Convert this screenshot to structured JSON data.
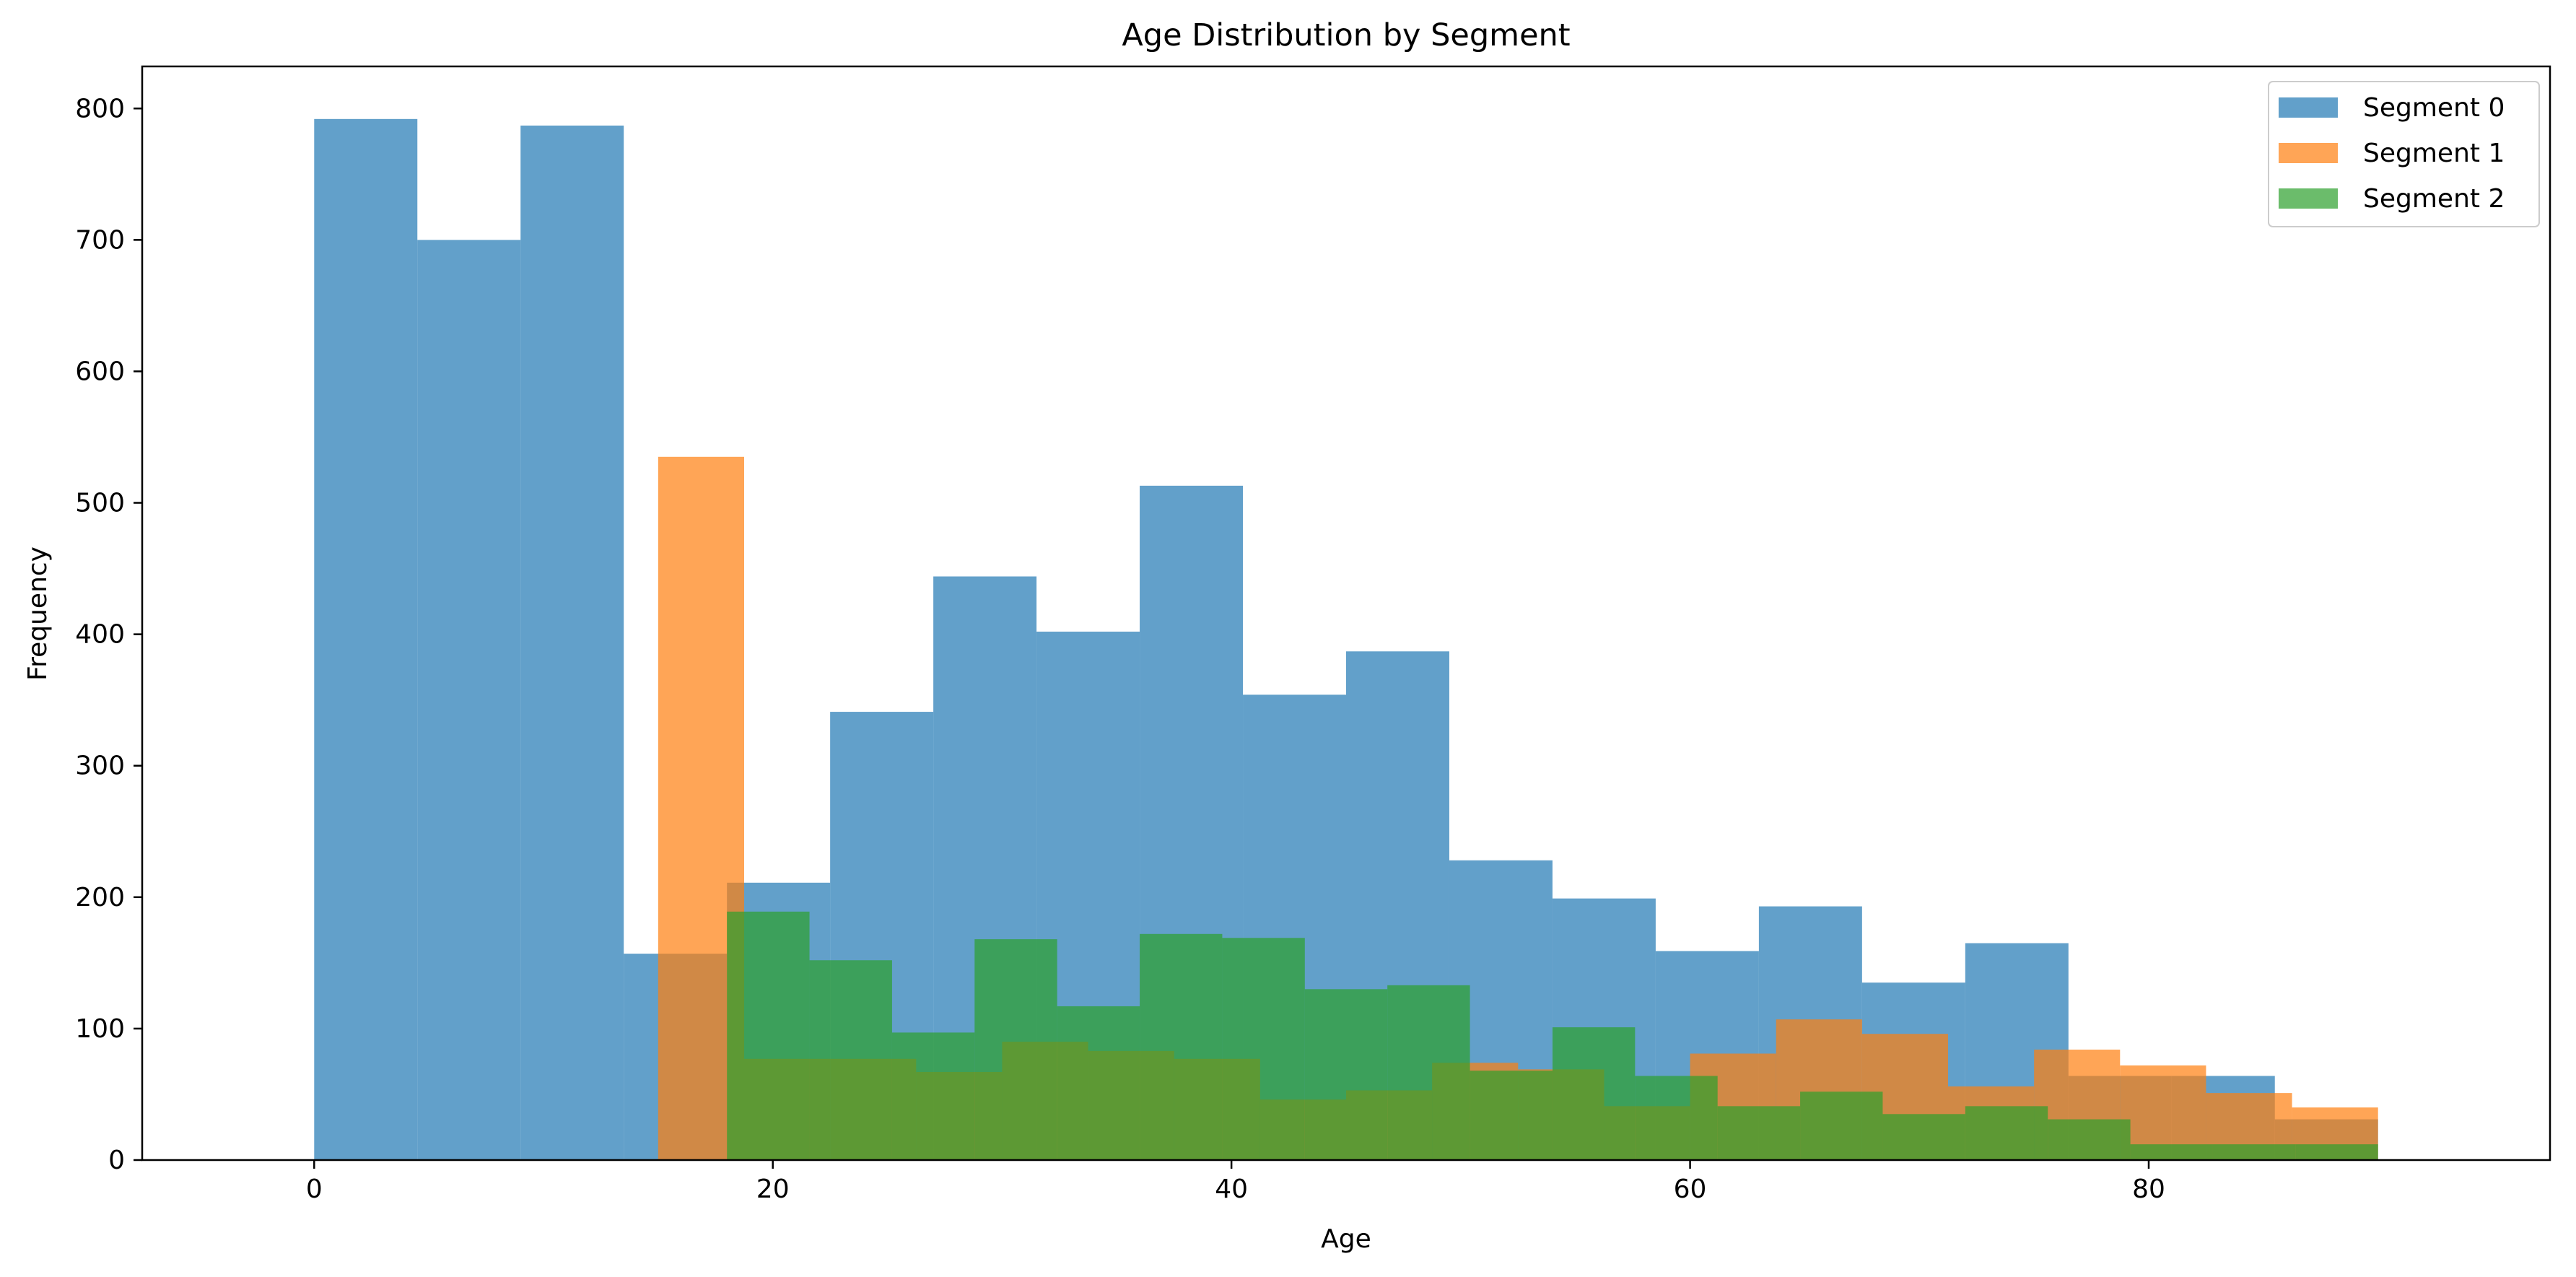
{
  "chart_data": {
    "type": "histogram",
    "title": "Age Distribution by Segment",
    "xlabel": "Age",
    "ylabel": "Frequency",
    "xlim": [
      -7.5,
      97.5
    ],
    "ylim": [
      0,
      832
    ],
    "xticks": [
      0,
      20,
      40,
      60,
      80
    ],
    "yticks": [
      0,
      100,
      200,
      300,
      400,
      500,
      600,
      700,
      800
    ],
    "grid": false,
    "legend_position": "top-right",
    "bar_alpha": 0.7,
    "series": [
      {
        "name": "Segment 0",
        "color": "#1f77b4",
        "bin_edges": [
          0,
          4.5,
          9,
          13.5,
          18,
          22.5,
          27,
          31.5,
          36,
          40.5,
          45,
          49.5,
          54,
          58.5,
          63,
          67.5,
          72,
          76.5,
          81,
          85.5,
          90
        ],
        "values": [
          792,
          700,
          787,
          157,
          211,
          341,
          444,
          402,
          513,
          354,
          387,
          228,
          199,
          159,
          193,
          135,
          165,
          64,
          64,
          31
        ]
      },
      {
        "name": "Segment 1",
        "color": "#ff7f0e",
        "bin_edges": [
          15,
          18.75,
          22.5,
          26.25,
          30,
          33.75,
          37.5,
          41.25,
          45,
          48.75,
          52.5,
          56.25,
          60,
          63.75,
          67.5,
          71.25,
          75,
          78.75,
          82.5,
          86.25,
          90
        ],
        "values": [
          535,
          77,
          77,
          67,
          90,
          83,
          77,
          46,
          53,
          74,
          69,
          41,
          81,
          107,
          96,
          56,
          84,
          72,
          51,
          40
        ]
      },
      {
        "name": "Segment 2",
        "color": "#2ca02c",
        "bin_edges": [
          18,
          21.6,
          25.2,
          28.8,
          32.4,
          36,
          39.6,
          43.2,
          46.8,
          50.4,
          54,
          57.6,
          61.2,
          64.8,
          68.4,
          72,
          75.6,
          79.2,
          82.8,
          86.4,
          90
        ],
        "values": [
          189,
          152,
          97,
          168,
          117,
          172,
          169,
          130,
          133,
          68,
          101,
          64,
          41,
          52,
          35,
          41,
          31,
          12,
          12,
          12
        ]
      }
    ]
  }
}
